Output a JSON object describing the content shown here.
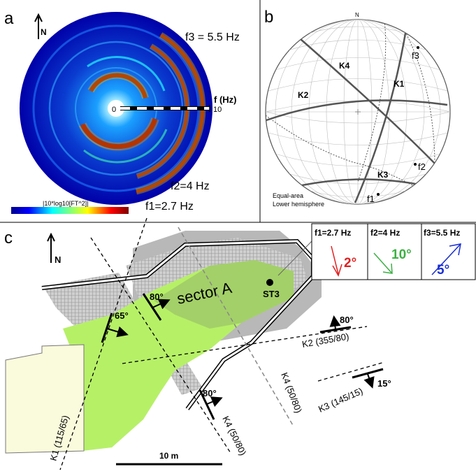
{
  "panel_a": {
    "label": "a",
    "north": "N",
    "f3": "f3 = 5.5 Hz",
    "f2": "f2=4 Hz",
    "f1": "f1=2.7 Hz",
    "axis_label": "f (Hz)",
    "axis_zero": "0",
    "axis_max": "10",
    "colorbar_label": "|10*log10[FT^2]|"
  },
  "panel_b": {
    "label": "b",
    "north": "N",
    "planes": {
      "k4": "K4",
      "k1": "K1",
      "k2": "K2",
      "k3": "K3"
    },
    "poles": {
      "f3": "f3",
      "f2": "f2",
      "f1": "f1"
    },
    "note1": "Equal-area",
    "note2": "Lower hemisphere"
  },
  "panel_c": {
    "label": "c",
    "north": "N",
    "sector": "sector A",
    "station": "ST3",
    "scale": "10 m",
    "dips": {
      "d65": "65°",
      "d80a": "80°",
      "d80b": "80°",
      "d80k2": "80°",
      "d15": "15°"
    },
    "k1": "K1 (115/65)",
    "k2": "K2 (355/80)",
    "k3": "K3 (145/15)",
    "k4a": "K4 (50/80)",
    "k4b": "K4 (50/80)",
    "legend": [
      {
        "title": "f1=2.7 Hz",
        "value": "2°",
        "color": "#e02020"
      },
      {
        "title": "f2=4 Hz",
        "value": "10°",
        "color": "#3cb043"
      },
      {
        "title": "f3=5.5 Hz",
        "value": "5°",
        "color": "#1a2fd0"
      }
    ]
  }
}
